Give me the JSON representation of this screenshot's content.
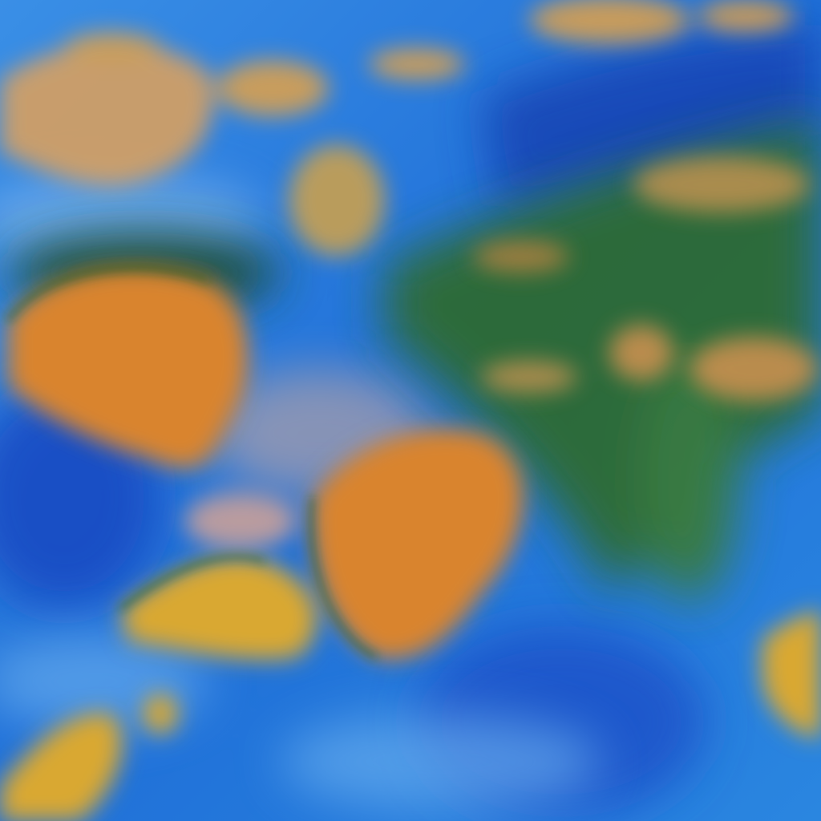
{
  "colors": {
    "ocean_blue": "#2a7ee0",
    "deep_blue": "#1440b0",
    "light_blue": "#6fb4f0",
    "cloud_orange": "#d9842e",
    "cloud_tan": "#d8a060",
    "cloud_yellow": "#d9a832",
    "vegetation_green": "#2f6a2a",
    "pale_pink": "#c9a9a0"
  }
}
